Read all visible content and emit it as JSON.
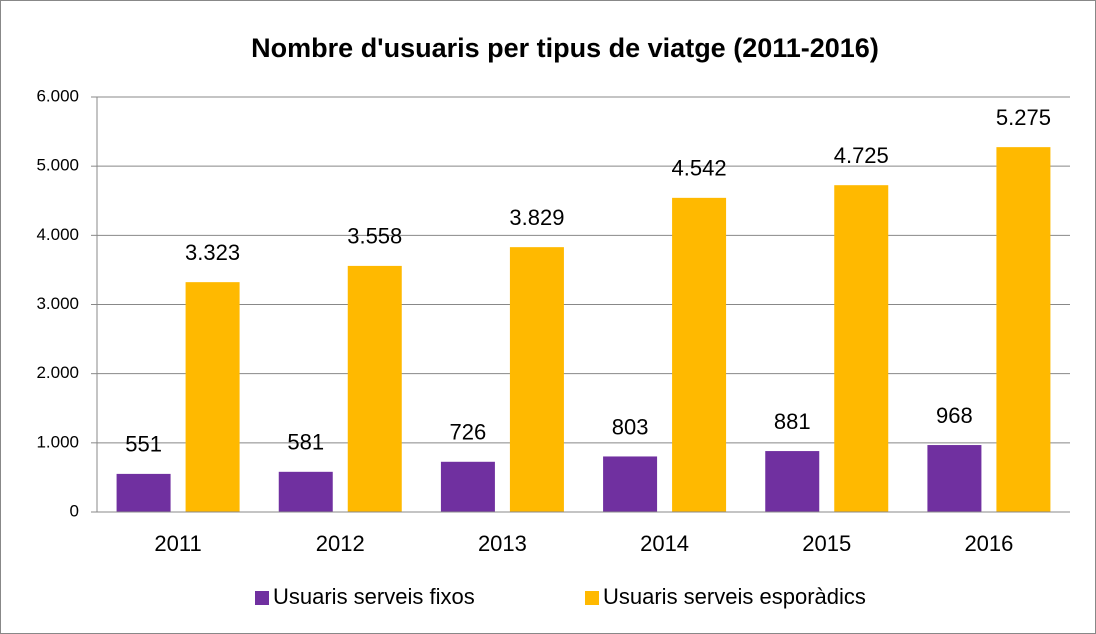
{
  "chart_data": {
    "type": "bar",
    "title": "Nombre d'usuaris per tipus de viatge (2011-2016)",
    "categories": [
      "2011",
      "2012",
      "2013",
      "2014",
      "2015",
      "2016"
    ],
    "series": [
      {
        "name": "Usuaris serveis fixos",
        "color": "#7030a0",
        "values": [
          551,
          581,
          726,
          803,
          881,
          968
        ],
        "value_labels": [
          "551",
          "581",
          "726",
          "803",
          "881",
          "968"
        ]
      },
      {
        "name": "Usuaris serveis esporàdics",
        "color": "#ffb900",
        "values": [
          3323,
          3558,
          3829,
          4542,
          4725,
          5275
        ],
        "value_labels": [
          "3.323",
          "3.558",
          "3.829",
          "4.542",
          "4.725",
          "5.275"
        ]
      }
    ],
    "ylim": [
      0,
      6000
    ],
    "yticks": [
      0,
      {
        "value": 1000,
        "label": "1.000"
      },
      {
        "value": 2000,
        "label": "2.000"
      },
      {
        "value": 3000,
        "label": "3.000"
      },
      {
        "value": 4000,
        "label": "4.000"
      },
      {
        "value": 5000,
        "label": "5.000"
      },
      {
        "value": 6000,
        "label": "6.000"
      }
    ],
    "grid": true,
    "legend": "bottom"
  }
}
